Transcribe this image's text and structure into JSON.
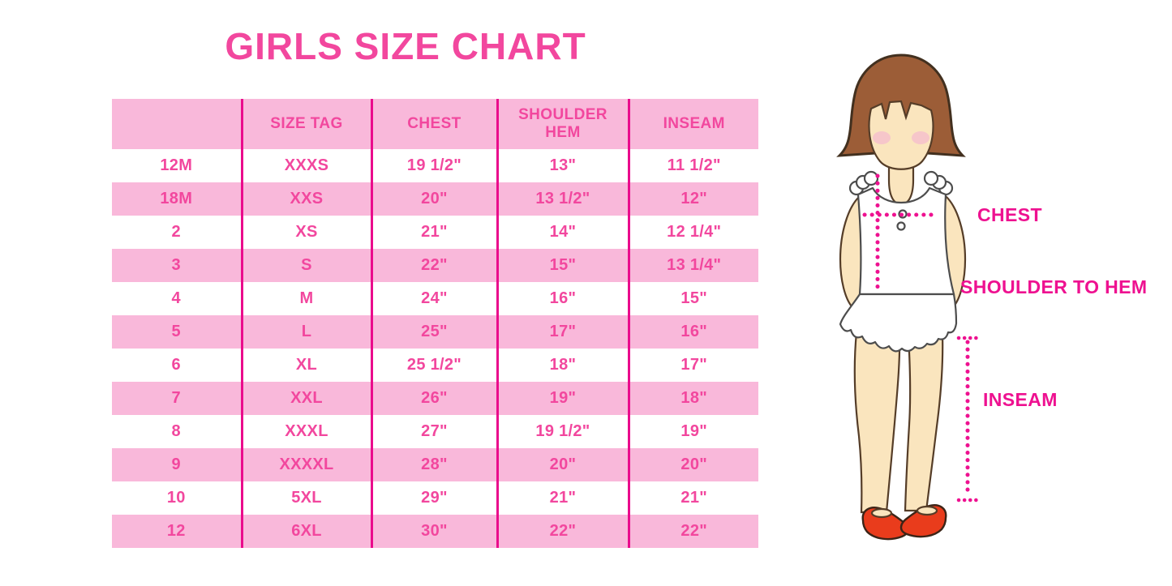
{
  "title": "GIRLS SIZE CHART",
  "colors": {
    "title-pink": "#F2479E",
    "row-pink": "#F9B8DA",
    "divider-pink": "#EA0B8C",
    "label-pink": "#EE1190",
    "hair-brown": "#9C5D37",
    "skin-tone": "#FAE5BE",
    "blush-pink": "#F5BECD",
    "shoe-red": "#E93C1C"
  },
  "chart_data": {
    "type": "table",
    "title": "GIRLS SIZE CHART",
    "columns": [
      "",
      "SIZE TAG",
      "CHEST",
      "SHOULDER HEM",
      "INSEAM"
    ],
    "rows": [
      [
        "12M",
        "XXXS",
        "19 1/2\"",
        "13\"",
        "11 1/2\""
      ],
      [
        "18M",
        "XXS",
        "20\"",
        "13 1/2\"",
        "12\""
      ],
      [
        "2",
        "XS",
        "21\"",
        "14\"",
        "12 1/4\""
      ],
      [
        "3",
        "S",
        "22\"",
        "15\"",
        "13 1/4\""
      ],
      [
        "4",
        "M",
        "24\"",
        "16\"",
        "15\""
      ],
      [
        "5",
        "L",
        "25\"",
        "17\"",
        "16\""
      ],
      [
        "6",
        "XL",
        "25 1/2\"",
        "18\"",
        "17\""
      ],
      [
        "7",
        "XXL",
        "26\"",
        "19\"",
        "18\""
      ],
      [
        "8",
        "XXXL",
        "27\"",
        "19 1/2\"",
        "19\""
      ],
      [
        "9",
        "XXXXL",
        "28\"",
        "20\"",
        "20\""
      ],
      [
        "10",
        "5XL",
        "29\"",
        "21\"",
        "21\""
      ],
      [
        "12",
        "6XL",
        "30\"",
        "22\"",
        "22\""
      ]
    ]
  },
  "figure": {
    "labels": {
      "chest": "CHEST",
      "shoulder_to_hem": "SHOULDER TO HEM",
      "inseam": "INSEAM"
    }
  }
}
